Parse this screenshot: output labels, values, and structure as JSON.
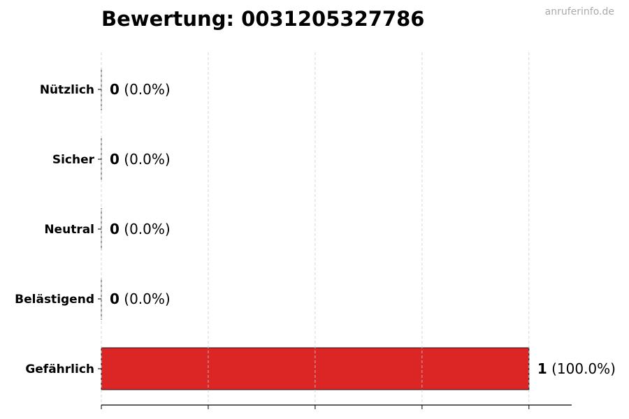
{
  "watermark": "anruferinfo.de",
  "chart_data": {
    "type": "bar",
    "orientation": "horizontal",
    "title": "Bewertung: 0031205327786",
    "xlabel": "",
    "ylabel": "",
    "categories": [
      "Nützlich",
      "Sicher",
      "Neutral",
      "Belästigend",
      "Gefährlich"
    ],
    "values": [
      0,
      0,
      0,
      0,
      1
    ],
    "percent_labels": [
      "(0.0%)",
      "(0.0%)",
      "(0.0%)",
      "(0.0%)",
      "(100.0%)"
    ],
    "xlim": [
      0,
      1.1
    ],
    "xticks": [
      0,
      0.25,
      0.5,
      0.75,
      1.0
    ],
    "grid": "x-dashed",
    "bar_color": "#dc2626",
    "edge_color": "#1a1a1a",
    "grid_color": "#cccccc"
  }
}
